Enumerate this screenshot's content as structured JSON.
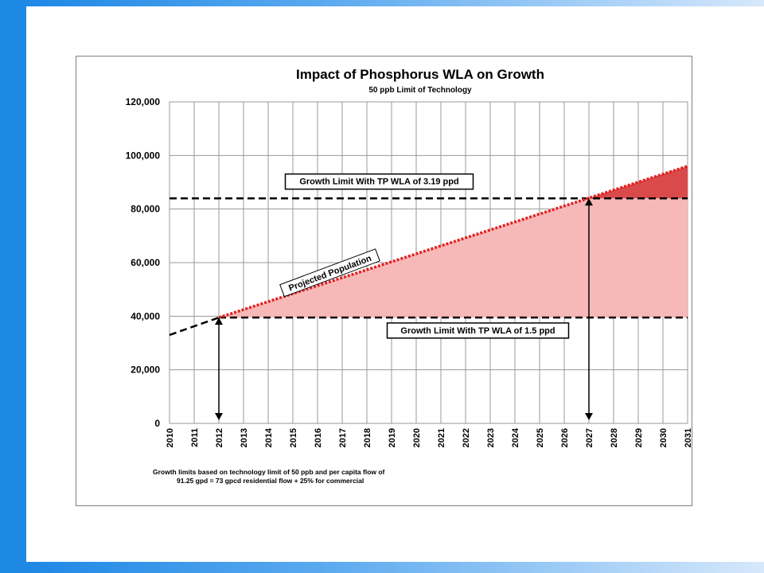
{
  "chart_data": {
    "type": "line",
    "title": "Impact of Phosphorus WLA on Growth",
    "subtitle": "50 ppb Limit of Technology",
    "xlabel": "",
    "ylabel": "",
    "x_ticks": [
      "2010",
      "2011",
      "2012",
      "2013",
      "2014",
      "2015",
      "2016",
      "2017",
      "2018",
      "2019",
      "2020",
      "2021",
      "2022",
      "2023",
      "2024",
      "2025",
      "2026",
      "2027",
      "2028",
      "2029",
      "2030",
      "2031"
    ],
    "xlim": [
      2010,
      2031
    ],
    "ylim": [
      0,
      120000
    ],
    "y_ticks": [
      "0",
      "20,000",
      "40,000",
      "60,000",
      "80,000",
      "100,000",
      "120,000"
    ],
    "y_tick_values": [
      0,
      20000,
      40000,
      60000,
      80000,
      100000,
      120000
    ],
    "grid": true,
    "series": [
      {
        "name": "Projected Population",
        "style": "dotted",
        "color": "#e32020",
        "x": [
          2012,
          2031
        ],
        "y": [
          39500,
          96000
        ]
      },
      {
        "name": "",
        "style": "dashed",
        "color": "#000000",
        "x": [
          2010,
          2012
        ],
        "y": [
          33000,
          39500
        ]
      }
    ],
    "limits": [
      {
        "label": "Growth Limit With TP WLA of 1.5 ppd",
        "y": 39500,
        "x": [
          2012,
          2031
        ]
      },
      {
        "label": "Growth Limit With TP WLA of 3.19 ppd",
        "y": 84000,
        "x": [
          2010,
          2031
        ]
      }
    ],
    "arrows": [
      {
        "x": 2012,
        "y": [
          0,
          39500
        ]
      },
      {
        "x": 2027,
        "y": [
          0,
          84000
        ]
      }
    ],
    "fill_colors": {
      "light": "#f7b8b8",
      "dark": "#d94b4b"
    },
    "annotations": {
      "projected_population": "Projected Population"
    },
    "footnote": [
      "Growth limits based on technology limit of 50 ppb and per capita flow of",
      "91.25 gpd = 73 gpcd residential flow + 25% for commercial"
    ]
  }
}
